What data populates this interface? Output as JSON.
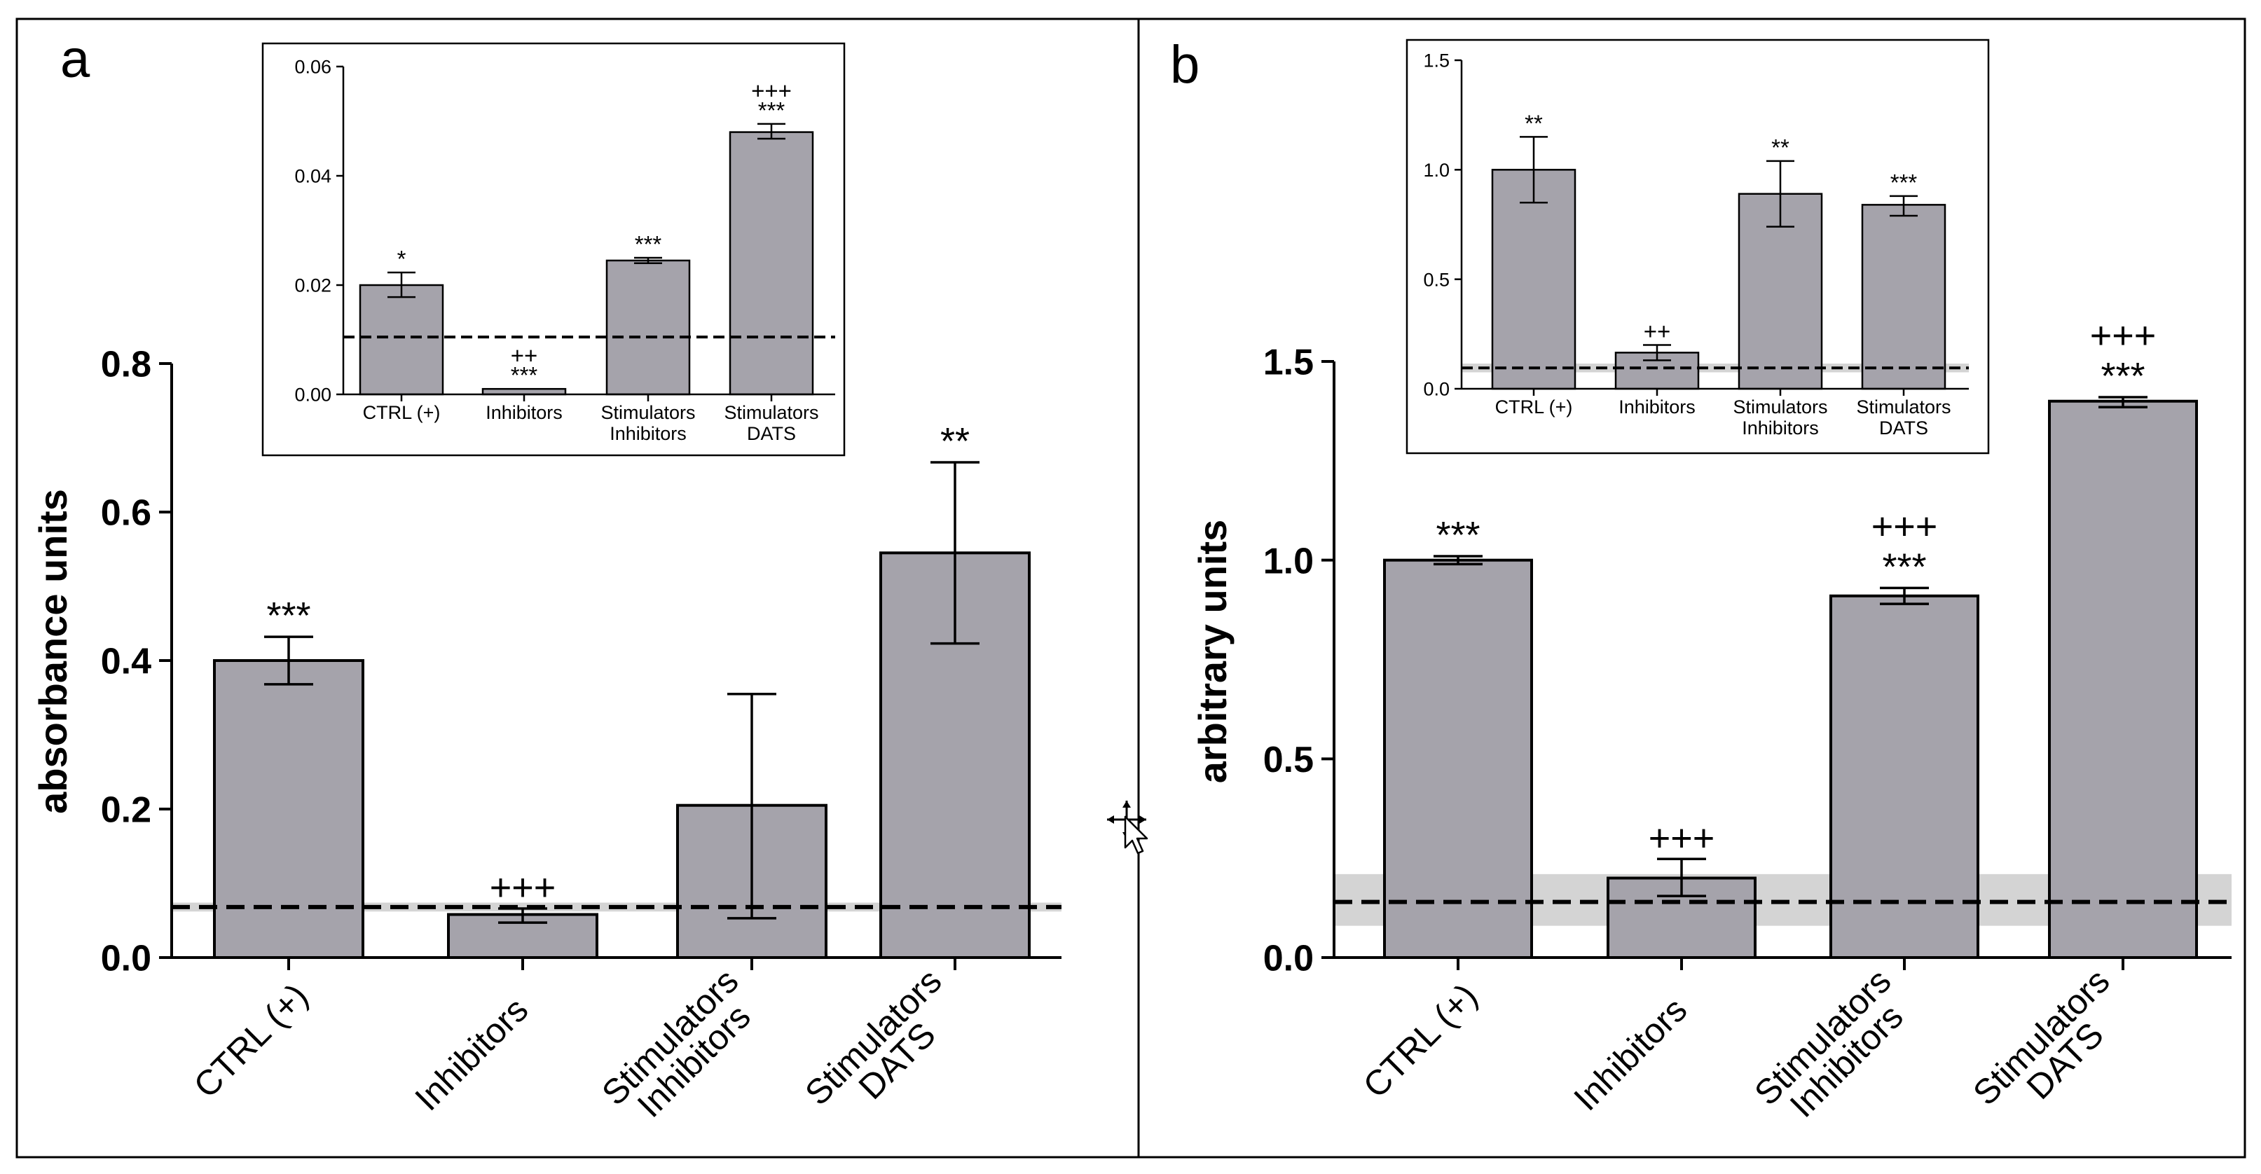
{
  "colors": {
    "bar": "#a5a3ab",
    "band": "#d4d4d4",
    "ink": "#000000"
  },
  "panels": [
    {
      "label": "a",
      "ylabel": "absorbance units"
    },
    {
      "label": "b",
      "ylabel": "arbitrary units"
    }
  ],
  "chart_data": [
    {
      "id": "a-main",
      "type": "bar",
      "panel": "a",
      "categories": [
        [
          "CTRL (+)"
        ],
        [
          "Inhibitors"
        ],
        [
          "Stimulators",
          "Inhibitors"
        ],
        [
          "Stimulators",
          "DATS"
        ]
      ],
      "values": [
        0.4,
        0.058,
        0.205,
        0.545
      ],
      "err_low": [
        0.368,
        0.047,
        0.053,
        0.423
      ],
      "err_high": [
        0.432,
        0.066,
        0.355,
        0.667
      ],
      "annotations": [
        [
          "***"
        ],
        [
          "+++"
        ],
        [],
        [
          "**"
        ]
      ],
      "ylabel": "absorbance units",
      "ylim": [
        0,
        0.8
      ],
      "yticks": [
        "0.0",
        "0.2",
        "0.4",
        "0.6",
        "0.8"
      ],
      "baseline": 0.068,
      "baseline_band": [
        0.062,
        0.074
      ]
    },
    {
      "id": "a-inset",
      "type": "bar",
      "panel": "a",
      "inset": true,
      "categories": [
        [
          "CTRL (+)"
        ],
        [
          "Inhibitors"
        ],
        [
          "Stimulators",
          "Inhibitors"
        ],
        [
          "Stimulators",
          "DATS"
        ]
      ],
      "values": [
        0.02,
        0.001,
        0.0245,
        0.048
      ],
      "err_low": [
        0.0178,
        0.001,
        0.024,
        0.0468
      ],
      "err_high": [
        0.0223,
        0.001,
        0.025,
        0.0495
      ],
      "annotations": [
        [
          "*"
        ],
        [
          "++",
          "***"
        ],
        [
          "***"
        ],
        [
          "+++",
          "***"
        ]
      ],
      "ylim": [
        0,
        0.06
      ],
      "yticks": [
        "0.00",
        "0.02",
        "0.04",
        "0.06"
      ],
      "baseline": 0.0105
    },
    {
      "id": "b-main",
      "type": "bar",
      "panel": "b",
      "categories": [
        [
          "CTRL (+)"
        ],
        [
          "Inhibitors"
        ],
        [
          "Stimulators",
          "Inhibitors"
        ],
        [
          "Stimulators",
          "DATS"
        ]
      ],
      "values": [
        1.0,
        0.2,
        0.91,
        1.4
      ],
      "err_low": [
        0.99,
        0.155,
        0.89,
        1.385
      ],
      "err_high": [
        1.01,
        0.248,
        0.93,
        1.41
      ],
      "annotations": [
        [
          "***"
        ],
        [
          "+++"
        ],
        [
          "+++",
          "***"
        ],
        [
          "+++",
          "***"
        ]
      ],
      "ylabel": "arbitrary units",
      "ylim": [
        0,
        1.5
      ],
      "yticks": [
        "0.0",
        "0.5",
        "1.0",
        "1.5"
      ],
      "baseline": 0.14,
      "baseline_band": [
        0.08,
        0.21
      ]
    },
    {
      "id": "b-inset",
      "type": "bar",
      "panel": "b",
      "inset": true,
      "categories": [
        [
          "CTRL (+)"
        ],
        [
          "Inhibitors"
        ],
        [
          "Stimulators",
          "Inhibitors"
        ],
        [
          "Stimulators",
          "DATS"
        ]
      ],
      "values": [
        1.0,
        0.165,
        0.89,
        0.84
      ],
      "err_low": [
        0.85,
        0.13,
        0.74,
        0.79
      ],
      "err_high": [
        1.15,
        0.2,
        1.04,
        0.88
      ],
      "annotations": [
        [
          "**"
        ],
        [
          "++"
        ],
        [
          "**"
        ],
        [
          "***"
        ]
      ],
      "ylim": [
        0,
        1.5
      ],
      "yticks": [
        "0.0",
        "0.5",
        "1.0",
        "1.5"
      ],
      "baseline": 0.095,
      "baseline_band": [
        0.075,
        0.115
      ]
    }
  ]
}
